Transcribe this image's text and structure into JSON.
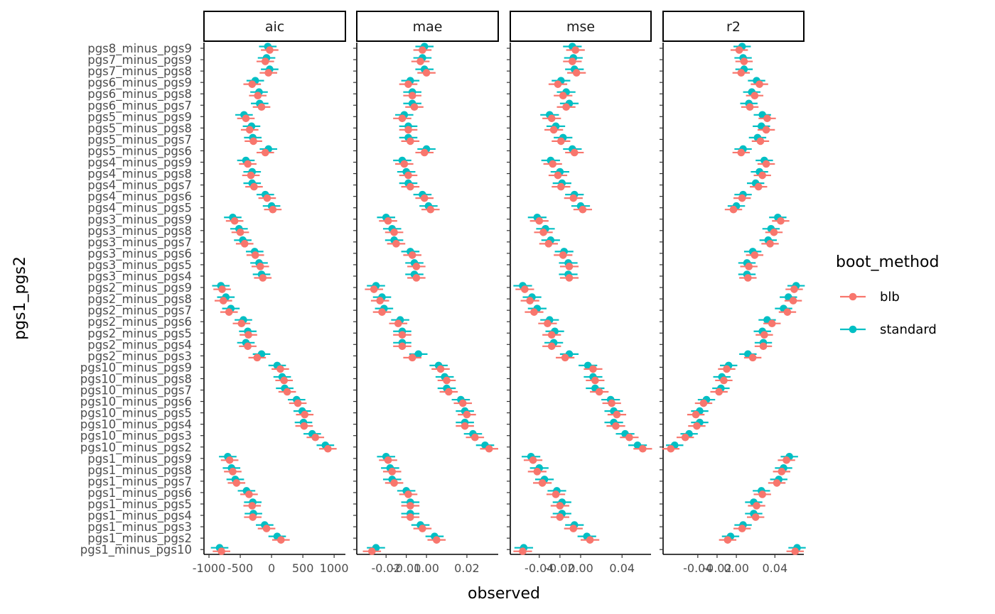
{
  "chart_data": {
    "type": "scatter",
    "xlabel": "observed",
    "ylabel": "pgs1_pgs2",
    "legend": {
      "title": "boot_method",
      "position": "right",
      "entries": [
        "blb",
        "standard"
      ]
    },
    "colors": {
      "blb": "#F8766D",
      "standard": "#00BFC4"
    },
    "categories": [
      "pgs8_minus_pgs9",
      "pgs7_minus_pgs9",
      "pgs7_minus_pgs8",
      "pgs6_minus_pgs9",
      "pgs6_minus_pgs8",
      "pgs6_minus_pgs7",
      "pgs5_minus_pgs9",
      "pgs5_minus_pgs8",
      "pgs5_minus_pgs7",
      "pgs5_minus_pgs6",
      "pgs4_minus_pgs9",
      "pgs4_minus_pgs8",
      "pgs4_minus_pgs7",
      "pgs4_minus_pgs6",
      "pgs4_minus_pgs5",
      "pgs3_minus_pgs9",
      "pgs3_minus_pgs8",
      "pgs3_minus_pgs7",
      "pgs3_minus_pgs6",
      "pgs3_minus_pgs5",
      "pgs3_minus_pgs4",
      "pgs2_minus_pgs9",
      "pgs2_minus_pgs8",
      "pgs2_minus_pgs7",
      "pgs2_minus_pgs6",
      "pgs2_minus_pgs5",
      "pgs2_minus_pgs4",
      "pgs2_minus_pgs3",
      "pgs10_minus_pgs9",
      "pgs10_minus_pgs8",
      "pgs10_minus_pgs7",
      "pgs10_minus_pgs6",
      "pgs10_minus_pgs5",
      "pgs10_minus_pgs4",
      "pgs10_minus_pgs3",
      "pgs10_minus_pgs2",
      "pgs1_minus_pgs9",
      "pgs1_minus_pgs8",
      "pgs1_minus_pgs7",
      "pgs1_minus_pgs6",
      "pgs1_minus_pgs5",
      "pgs1_minus_pgs4",
      "pgs1_minus_pgs3",
      "pgs1_minus_pgs2",
      "pgs1_minus_pgs10"
    ],
    "panels": [
      {
        "name": "aic",
        "xlim": [
          -1080,
          1180
        ],
        "xticks": [
          -1000,
          -500,
          0,
          500,
          1000
        ],
        "xtick_labels": [
          "-1000",
          "-500",
          "0",
          "500",
          "1000"
        ],
        "half_width": 140,
        "series": [
          {
            "name": "blb",
            "values": [
              -30,
              -100,
              -50,
              -310,
              -220,
              -160,
              -410,
              -350,
              -290,
              -100,
              -380,
              -330,
              -280,
              -70,
              20,
              -590,
              -500,
              -430,
              -260,
              -180,
              -140,
              -790,
              -770,
              -680,
              -480,
              -370,
              -380,
              -230,
              140,
              200,
              250,
              420,
              530,
              520,
              700,
              900,
              -670,
              -620,
              -560,
              -360,
              -310,
              -300,
              -80,
              150,
              -800
            ]
          },
          {
            "name": "standard",
            "values": [
              -60,
              -80,
              -30,
              -260,
              -200,
              -190,
              -440,
              -320,
              -300,
              -50,
              -410,
              -310,
              -310,
              -100,
              0,
              -620,
              -520,
              -460,
              -270,
              -200,
              -160,
              -810,
              -730,
              -650,
              -450,
              -380,
              -410,
              -160,
              90,
              170,
              210,
              400,
              490,
              510,
              650,
              860,
              -700,
              -640,
              -580,
              -400,
              -300,
              -290,
              -110,
              90,
              -830
            ]
          }
        ]
      },
      {
        "name": "mae",
        "xlim": [
          -0.0345,
          0.0355
        ],
        "xticks": [
          -0.02,
          -0.01,
          0.0,
          0.02
        ],
        "xtick_labels": [
          "-0.02",
          "-0.01",
          "0.00",
          "0.02"
        ],
        "half_width": 0.0045,
        "series": [
          {
            "name": "blb",
            "values": [
              -0.002,
              -0.003,
              0.0,
              -0.009,
              -0.007,
              -0.006,
              -0.012,
              -0.009,
              -0.008,
              -0.001,
              -0.011,
              -0.009,
              -0.008,
              -0.001,
              0.002,
              -0.019,
              -0.016,
              -0.015,
              -0.007,
              -0.005,
              -0.005,
              -0.026,
              -0.023,
              -0.022,
              -0.014,
              -0.012,
              -0.012,
              -0.007,
              0.007,
              0.01,
              0.011,
              0.018,
              0.02,
              0.019,
              0.024,
              0.031,
              -0.019,
              -0.017,
              -0.016,
              -0.009,
              -0.008,
              -0.008,
              -0.002,
              0.005,
              -0.027
            ]
          },
          {
            "name": "standard",
            "values": [
              -0.001,
              -0.002,
              -0.001,
              -0.008,
              -0.007,
              -0.007,
              -0.011,
              -0.009,
              -0.009,
              0.0,
              -0.012,
              -0.01,
              -0.009,
              -0.002,
              0.001,
              -0.02,
              -0.017,
              -0.016,
              -0.008,
              -0.006,
              -0.006,
              -0.025,
              -0.022,
              -0.021,
              -0.013,
              -0.012,
              -0.012,
              -0.004,
              0.006,
              0.009,
              0.01,
              0.017,
              0.019,
              0.019,
              0.023,
              0.029,
              -0.02,
              -0.018,
              -0.017,
              -0.01,
              -0.008,
              -0.008,
              -0.003,
              0.004,
              -0.025
            ]
          }
        ]
      },
      {
        "name": "mse",
        "xlim": [
          -0.068,
          0.068
        ],
        "xticks": [
          -0.04,
          -0.02,
          0.0,
          0.04
        ],
        "xtick_labels": [
          "-0.04",
          "-0.02",
          "0.00",
          "0.04"
        ],
        "half_width": 0.009,
        "series": [
          {
            "name": "blb",
            "values": [
              -0.005,
              -0.008,
              -0.004,
              -0.022,
              -0.017,
              -0.014,
              -0.028,
              -0.026,
              -0.019,
              -0.006,
              -0.027,
              -0.022,
              -0.019,
              -0.007,
              0.002,
              -0.04,
              -0.036,
              -0.031,
              -0.017,
              -0.011,
              -0.011,
              -0.054,
              -0.049,
              -0.045,
              -0.032,
              -0.028,
              -0.028,
              -0.015,
              0.012,
              0.014,
              0.018,
              0.03,
              0.035,
              0.034,
              0.047,
              0.06,
              -0.046,
              -0.042,
              -0.037,
              -0.024,
              -0.02,
              -0.02,
              -0.007,
              0.009,
              -0.056
            ]
          },
          {
            "name": "standard",
            "values": [
              -0.008,
              -0.007,
              -0.006,
              -0.019,
              -0.014,
              -0.011,
              -0.03,
              -0.024,
              -0.017,
              -0.008,
              -0.029,
              -0.02,
              -0.018,
              -0.006,
              0.0,
              -0.042,
              -0.034,
              -0.029,
              -0.016,
              -0.012,
              -0.012,
              -0.056,
              -0.047,
              -0.042,
              -0.03,
              -0.025,
              -0.026,
              -0.011,
              0.007,
              0.012,
              0.014,
              0.029,
              0.032,
              0.032,
              0.043,
              0.055,
              -0.048,
              -0.04,
              -0.035,
              -0.023,
              -0.018,
              -0.018,
              -0.006,
              0.006,
              -0.055
            ]
          }
        ]
      },
      {
        "name": "r2",
        "xlim": [
          -0.076,
          0.07
        ],
        "xticks": [
          -0.04,
          -0.02,
          0.0,
          0.04
        ],
        "xtick_labels": [
          "-0.04",
          "-0.02",
          "0.00",
          "0.04"
        ],
        "half_width": 0.009,
        "series": [
          {
            "name": "blb",
            "values": [
              0.003,
              0.008,
              0.005,
              0.024,
              0.019,
              0.014,
              0.032,
              0.031,
              0.025,
              0.005,
              0.031,
              0.027,
              0.023,
              0.006,
              -0.003,
              0.046,
              0.039,
              0.035,
              0.019,
              0.013,
              0.012,
              0.06,
              0.059,
              0.053,
              0.037,
              0.029,
              0.028,
              0.017,
              -0.01,
              -0.013,
              -0.018,
              -0.034,
              -0.042,
              -0.041,
              -0.053,
              -0.068,
              0.052,
              0.047,
              0.042,
              0.027,
              0.021,
              0.02,
              0.006,
              -0.009,
              0.061
            ]
          },
          {
            "name": "standard",
            "values": [
              0.006,
              0.007,
              0.008,
              0.021,
              0.016,
              0.013,
              0.027,
              0.026,
              0.022,
              0.007,
              0.029,
              0.024,
              0.02,
              0.007,
              0.0,
              0.043,
              0.036,
              0.033,
              0.017,
              0.011,
              0.011,
              0.062,
              0.054,
              0.049,
              0.032,
              0.027,
              0.028,
              0.012,
              -0.008,
              -0.015,
              -0.016,
              -0.031,
              -0.038,
              -0.038,
              -0.049,
              -0.064,
              0.055,
              0.049,
              0.044,
              0.026,
              0.018,
              0.018,
              0.007,
              -0.006,
              0.063
            ]
          }
        ]
      }
    ]
  }
}
